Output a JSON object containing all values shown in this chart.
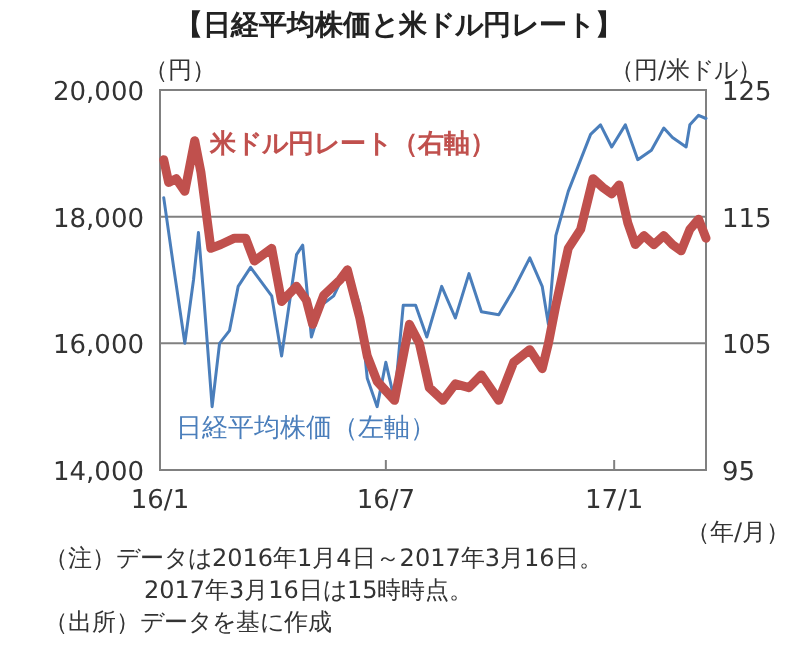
{
  "chart_data": {
    "type": "line",
    "title": "【日経平均株価と米ドル円レート】",
    "ylabel": "（円）",
    "y2label": "（円/米ドル）",
    "xlabel": "（年/月）",
    "annotations": [
      "（注）データは2016年1月4日～2017年3月16日。",
      "2017年3月16日は15時時点。",
      "（出所）データを基に作成"
    ],
    "grid": "y",
    "xlim": [
      "2016-01-01",
      "2017-03-16"
    ],
    "xticks": [
      {
        "value": "2016-01-01",
        "label": "16/1"
      },
      {
        "value": "2016-07-01",
        "label": "16/7"
      },
      {
        "value": "2017-01-01",
        "label": "17/1"
      }
    ],
    "ylim": [
      14000,
      20000
    ],
    "yticks": [
      {
        "value": 14000,
        "label": "14,000"
      },
      {
        "value": 16000,
        "label": "16,000"
      },
      {
        "value": 18000,
        "label": "18,000"
      },
      {
        "value": 20000,
        "label": "20,000"
      }
    ],
    "y2lim": [
      95,
      125
    ],
    "y2ticks": [
      95,
      105,
      115,
      125
    ],
    "series": [
      {
        "name": "日経平均株価（左軸）",
        "color": "#4a7ebb",
        "axis": "y",
        "line_style": "solid",
        "x": [
          "2016-01-04",
          "2016-01-12",
          "2016-01-21",
          "2016-01-28",
          "2016-02-01",
          "2016-02-05",
          "2016-02-12",
          "2016-02-18",
          "2016-02-26",
          "2016-03-04",
          "2016-03-14",
          "2016-03-31",
          "2016-04-08",
          "2016-04-20",
          "2016-04-25",
          "2016-05-02",
          "2016-05-10",
          "2016-05-20",
          "2016-05-31",
          "2016-06-10",
          "2016-06-16",
          "2016-06-24",
          "2016-07-01",
          "2016-07-08",
          "2016-07-15",
          "2016-07-25",
          "2016-08-03",
          "2016-08-15",
          "2016-08-26",
          "2016-09-06",
          "2016-09-16",
          "2016-09-30",
          "2016-10-12",
          "2016-10-25",
          "2016-11-04",
          "2016-11-09",
          "2016-11-15",
          "2016-11-25",
          "2016-12-01",
          "2016-12-13",
          "2016-12-21",
          "2016-12-30",
          "2017-01-10",
          "2017-01-20",
          "2017-01-31",
          "2017-02-10",
          "2017-02-17",
          "2017-02-28",
          "2017-03-03",
          "2017-03-10",
          "2017-03-16"
        ],
        "values": [
          18300,
          17200,
          16000,
          17000,
          17750,
          16800,
          15000,
          16000,
          16200,
          16900,
          17200,
          16750,
          15800,
          17400,
          17550,
          16100,
          16600,
          16750,
          17200,
          16600,
          15450,
          15000,
          15700,
          15100,
          16600,
          16600,
          16100,
          16900,
          16400,
          17100,
          16500,
          16450,
          16850,
          17350,
          16900,
          16300,
          17700,
          18400,
          18700,
          19300,
          19450,
          19100,
          19450,
          18900,
          19050,
          19400,
          19250,
          19100,
          19450,
          19600,
          19550
        ]
      },
      {
        "name": "米ドル円レート（右軸）",
        "color": "#c0504d",
        "axis": "y2",
        "line_style": "solid",
        "x": [
          "2016-01-04",
          "2016-01-08",
          "2016-01-14",
          "2016-01-21",
          "2016-01-29",
          "2016-02-03",
          "2016-02-11",
          "2016-02-19",
          "2016-03-01",
          "2016-03-10",
          "2016-03-17",
          "2016-03-31",
          "2016-04-08",
          "2016-04-20",
          "2016-04-28",
          "2016-05-03",
          "2016-05-12",
          "2016-05-25",
          "2016-05-31",
          "2016-06-10",
          "2016-06-16",
          "2016-06-24",
          "2016-07-08",
          "2016-07-20",
          "2016-07-28",
          "2016-08-05",
          "2016-08-16",
          "2016-08-26",
          "2016-09-06",
          "2016-09-16",
          "2016-09-30",
          "2016-10-12",
          "2016-10-25",
          "2016-11-04",
          "2016-11-09",
          "2016-11-15",
          "2016-11-25",
          "2016-12-05",
          "2016-12-15",
          "2016-12-23",
          "2016-12-30",
          "2017-01-05",
          "2017-01-12",
          "2017-01-18",
          "2017-01-25",
          "2017-02-02",
          "2017-02-10",
          "2017-02-17",
          "2017-02-24",
          "2017-03-03",
          "2017-03-10",
          "2017-03-16"
        ],
        "values": [
          119.5,
          117.7,
          118,
          117,
          121,
          118.5,
          112.5,
          112.8,
          113.3,
          113.3,
          111.5,
          112.5,
          108.3,
          109.5,
          108.4,
          106.5,
          108.8,
          110,
          110.8,
          107,
          104,
          102,
          100.5,
          106.5,
          105,
          101.5,
          100.5,
          101.8,
          101.5,
          102.5,
          100.5,
          103.5,
          104.5,
          103,
          105,
          108,
          112.5,
          114,
          118,
          117.3,
          116.8,
          117.5,
          114.5,
          112.8,
          113.5,
          112.8,
          113.5,
          112.8,
          112.3,
          114,
          114.8,
          113.3
        ]
      }
    ]
  }
}
